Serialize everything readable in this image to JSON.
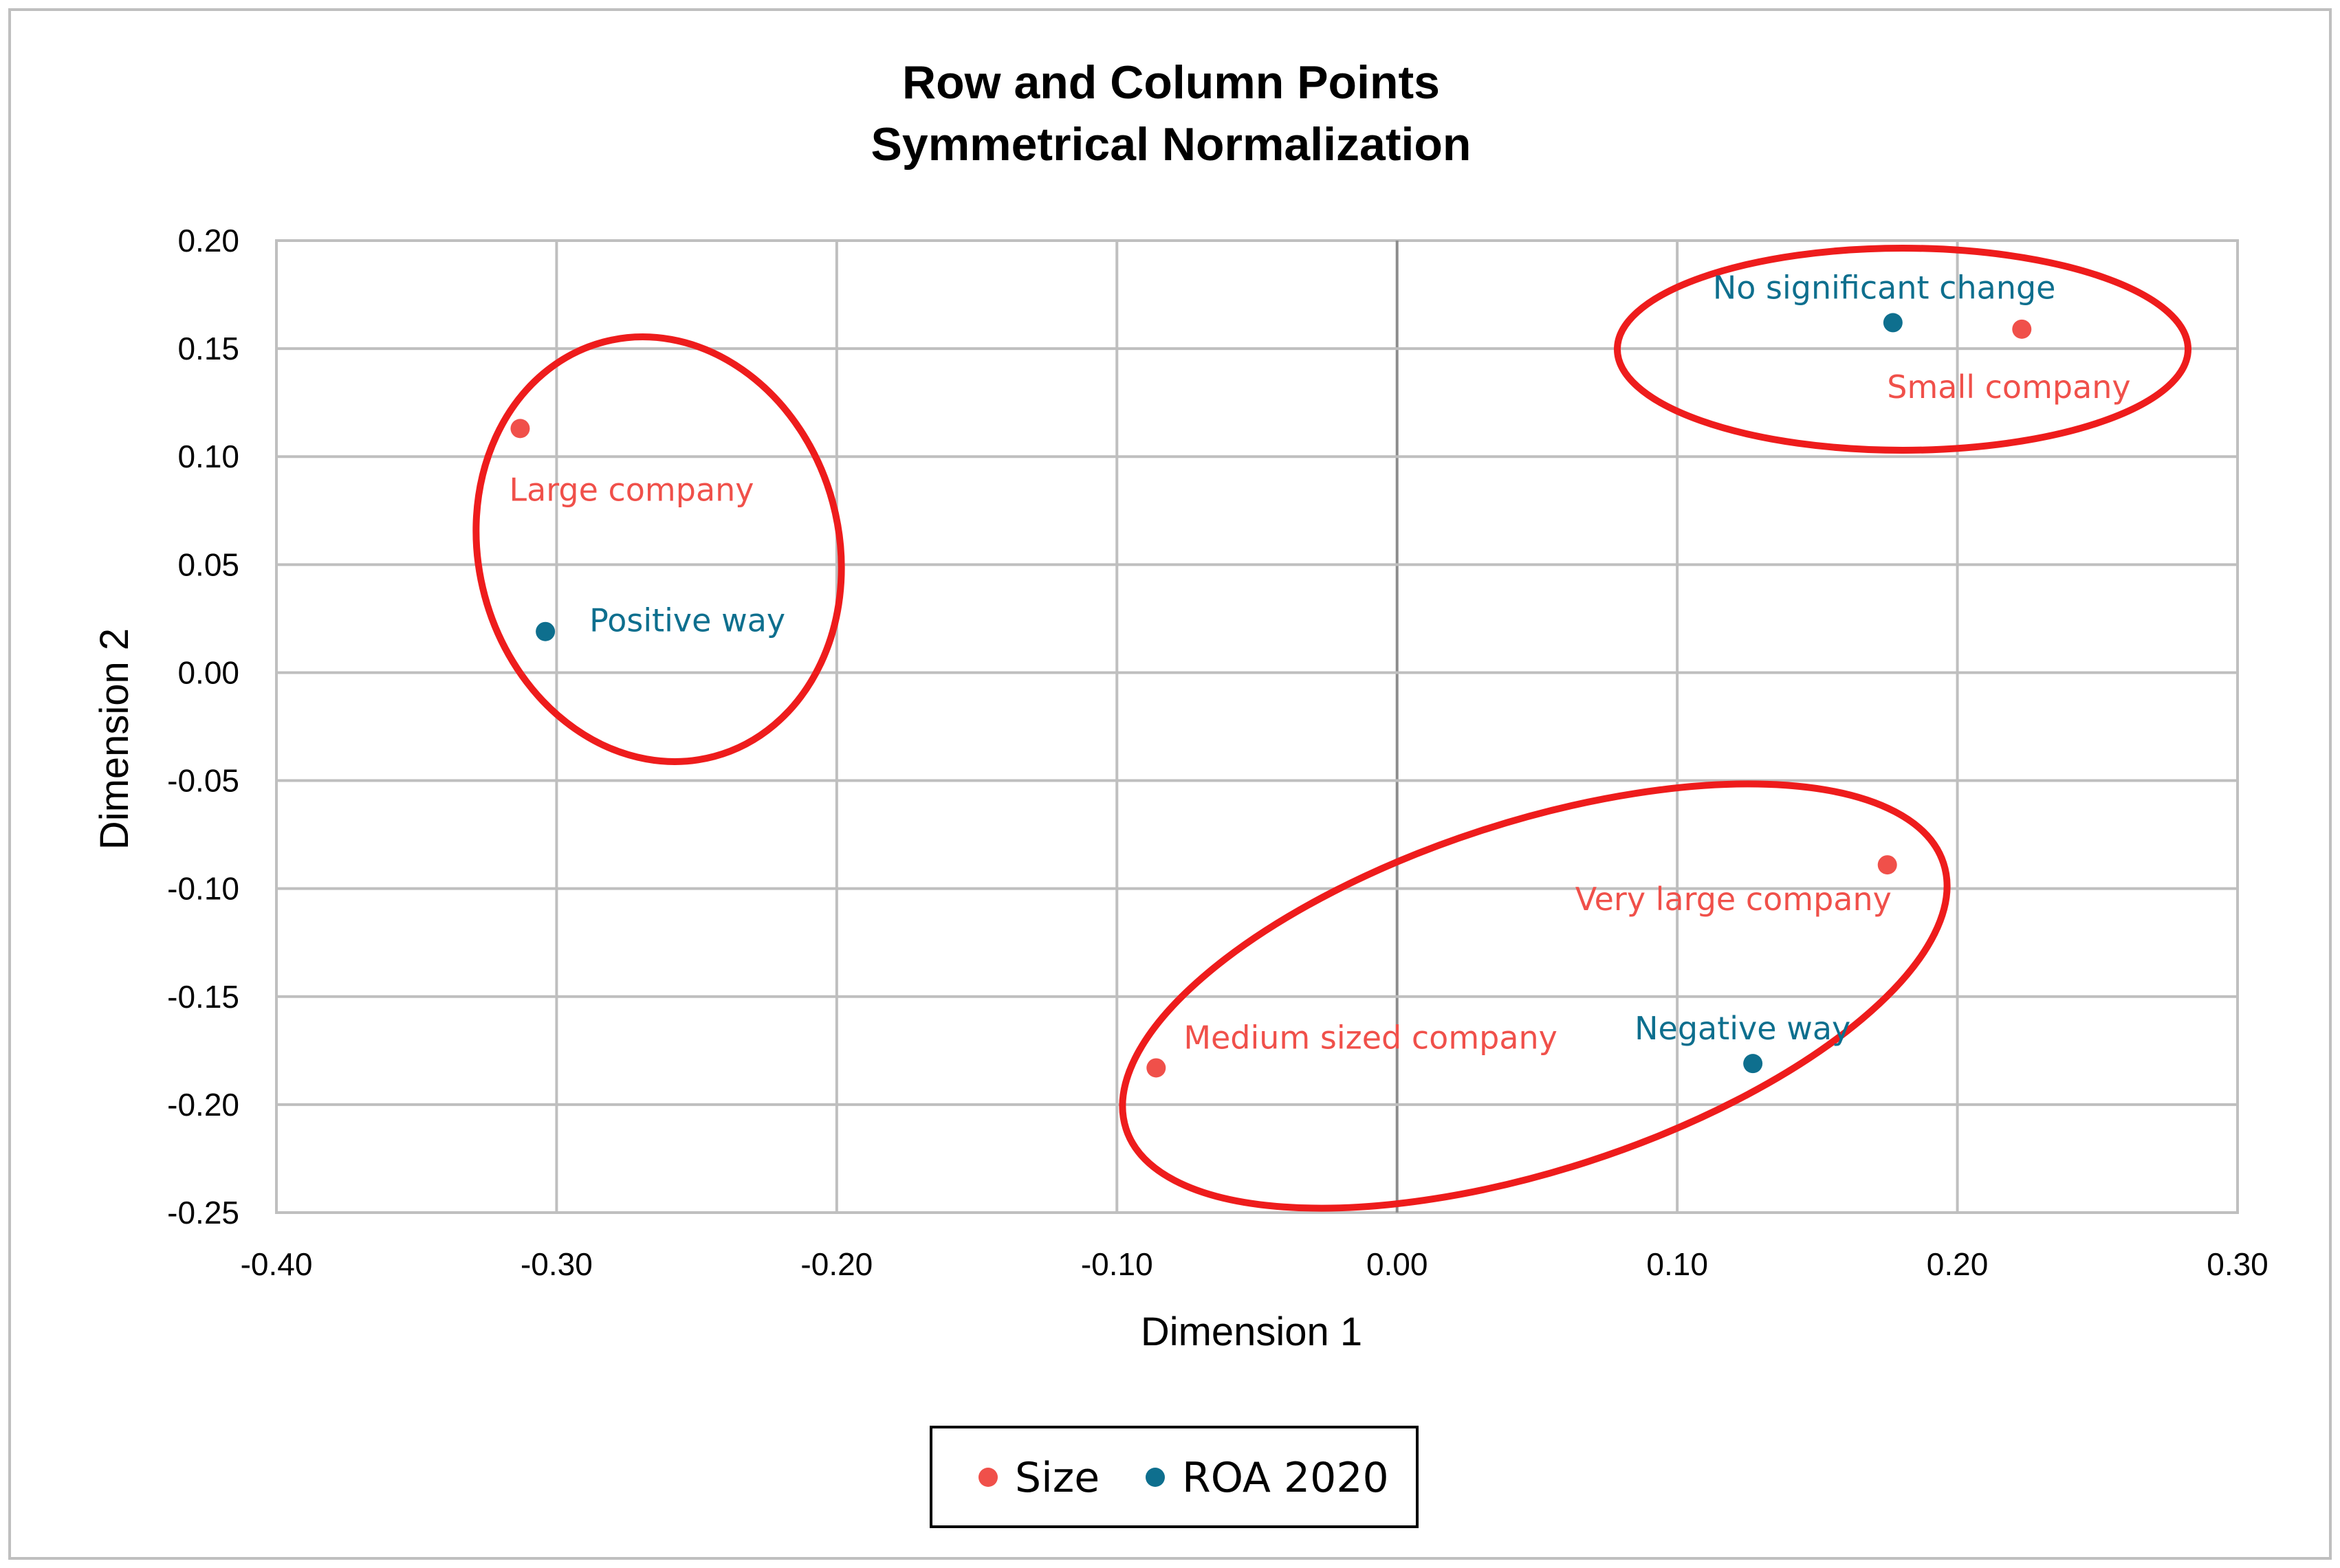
{
  "chart_data": {
    "type": "scatter",
    "title": "Row and Column Points",
    "subtitle": "Symmetrical Normalization",
    "xlabel": "Dimension 1",
    "ylabel": "Dimension 2",
    "xlim": [
      -0.4,
      0.3
    ],
    "ylim": [
      -0.25,
      0.2
    ],
    "xticks": [
      "-0.40",
      "-0.30",
      "-0.20",
      "-0.10",
      "0.00",
      "0.10",
      "0.20",
      "0.30"
    ],
    "yticks": [
      "0.20",
      "0.15",
      "0.10",
      "0.05",
      "0.00",
      "-0.05",
      "-0.10",
      "-0.15",
      "-0.20",
      "-0.25"
    ],
    "grid": true,
    "legend_position": "bottom",
    "series": [
      {
        "name": "Size",
        "color": "#f0504a",
        "points": [
          {
            "label": "Large company",
            "x": -0.313,
            "y": 0.113
          },
          {
            "label": "Small company",
            "x": 0.223,
            "y": 0.159
          },
          {
            "label": "Very large company",
            "x": 0.175,
            "y": -0.089
          },
          {
            "label": "Medium sized company",
            "x": -0.086,
            "y": -0.183
          }
        ]
      },
      {
        "name": "ROA 2020",
        "color": "#0e6f8e",
        "points": [
          {
            "label": "Positive way",
            "x": -0.304,
            "y": 0.019
          },
          {
            "label": "No significant change",
            "x": 0.177,
            "y": 0.162
          },
          {
            "label": "Negative way",
            "x": 0.127,
            "y": -0.181
          }
        ]
      }
    ],
    "annotations": {
      "type": "ellipse",
      "color": "#ee1c1c",
      "count": 3
    }
  }
}
